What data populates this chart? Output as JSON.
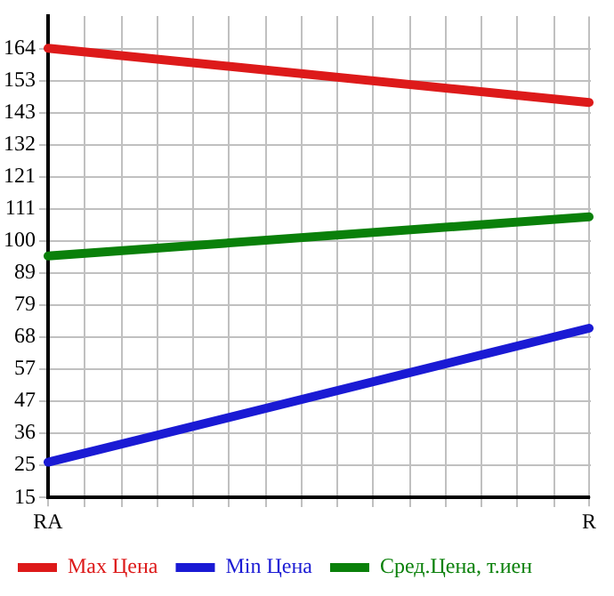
{
  "chart_data": {
    "type": "line",
    "categories": [
      "RA",
      "R"
    ],
    "series": [
      {
        "name": "Max Цена",
        "color": "#dd1a1a",
        "values": [
          164,
          146
        ]
      },
      {
        "name": "Min Цена",
        "color": "#1a1ad4",
        "values": [
          26.5,
          71
        ]
      },
      {
        "name": "Сред.Цена, т.иен",
        "color": "#0a800a",
        "values": [
          95,
          108
        ]
      }
    ],
    "ylim": [
      14.8,
      174.6
    ],
    "yticks": [
      {
        "value": 14.8,
        "label": "15"
      },
      {
        "value": 25.45,
        "label": "25"
      },
      {
        "value": 36.1,
        "label": "36"
      },
      {
        "value": 46.75,
        "label": "47"
      },
      {
        "value": 57.4,
        "label": "57"
      },
      {
        "value": 68.05,
        "label": "68"
      },
      {
        "value": 78.7,
        "label": "79"
      },
      {
        "value": 89.35,
        "label": "89"
      },
      {
        "value": 100,
        "label": "100"
      },
      {
        "value": 110.65,
        "label": "111"
      },
      {
        "value": 121.3,
        "label": "121"
      },
      {
        "value": 131.95,
        "label": "132"
      },
      {
        "value": 142.6,
        "label": "143"
      },
      {
        "value": 153.25,
        "label": "153"
      },
      {
        "value": 163.9,
        "label": "164"
      }
    ],
    "grid": true,
    "legend": "bottom",
    "marker": "none",
    "line_style": "solid"
  }
}
